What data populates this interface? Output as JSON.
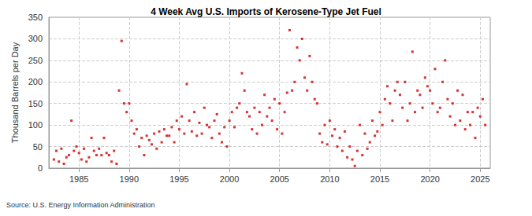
{
  "chart_data": {
    "type": "scatter",
    "title": "4 Week Avg U.S. Imports of Kerosene-Type Jet Fuel",
    "y_label": "Thousand Barrels per Day",
    "source": "Source: U.S. Energy Information Administration",
    "color": "#cc0000",
    "marker": "square",
    "grid": true,
    "xlim": [
      1982,
      2026
    ],
    "xticks": [
      1985,
      1990,
      1995,
      2000,
      2005,
      2010,
      2015,
      2020,
      2025
    ],
    "ylim": [
      0,
      350
    ],
    "yticks": [
      0,
      50,
      100,
      150,
      200,
      250,
      300,
      350
    ],
    "x": [
      1982.5,
      1982.75,
      1983,
      1983.25,
      1983.5,
      1983.75,
      1984,
      1984.25,
      1984.5,
      1984.75,
      1985,
      1985.25,
      1985.5,
      1985.75,
      1986,
      1986.25,
      1986.5,
      1986.75,
      1987,
      1987.25,
      1987.5,
      1987.75,
      1988,
      1988.25,
      1988.5,
      1988.75,
      1989,
      1989.25,
      1989.5,
      1989.75,
      1990,
      1990.25,
      1990.5,
      1990.75,
      1991,
      1991.25,
      1991.5,
      1991.75,
      1992,
      1992.25,
      1992.5,
      1992.75,
      1993,
      1993.25,
      1993.5,
      1993.75,
      1994,
      1994.25,
      1994.5,
      1994.75,
      1995,
      1995.25,
      1995.5,
      1995.75,
      1996,
      1996.25,
      1996.5,
      1996.75,
      1997,
      1997.25,
      1997.5,
      1997.75,
      1998,
      1998.25,
      1998.5,
      1998.75,
      1999,
      1999.25,
      1999.5,
      1999.75,
      2000,
      2000.25,
      2000.5,
      2000.75,
      2001,
      2001.25,
      2001.5,
      2001.75,
      2002,
      2002.25,
      2002.5,
      2002.75,
      2003,
      2003.25,
      2003.5,
      2003.75,
      2004,
      2004.25,
      2004.5,
      2004.75,
      2005,
      2005.25,
      2005.5,
      2005.75,
      2006,
      2006.25,
      2006.5,
      2006.75,
      2007,
      2007.25,
      2007.5,
      2007.75,
      2008,
      2008.25,
      2008.5,
      2008.75,
      2009,
      2009.25,
      2009.5,
      2009.75,
      2010,
      2010.25,
      2010.5,
      2010.75,
      2011,
      2011.25,
      2011.5,
      2011.75,
      2012,
      2012.25,
      2012.5,
      2012.75,
      2013,
      2013.25,
      2013.5,
      2013.75,
      2014,
      2014.25,
      2014.5,
      2014.75,
      2015,
      2015.25,
      2015.5,
      2015.75,
      2016,
      2016.25,
      2016.5,
      2016.75,
      2017,
      2017.25,
      2017.5,
      2017.75,
      2018,
      2018.25,
      2018.5,
      2018.75,
      2019,
      2019.25,
      2019.5,
      2019.75,
      2020,
      2020.25,
      2020.5,
      2020.75,
      2021,
      2021.25,
      2021.5,
      2021.75,
      2022,
      2022.25,
      2022.5,
      2022.75,
      2023,
      2023.25,
      2023.5,
      2023.75,
      2024,
      2024.25,
      2024.5,
      2024.75,
      2025,
      2025.25,
      2025.5
    ],
    "values": [
      20,
      40,
      15,
      45,
      10,
      25,
      30,
      110,
      40,
      50,
      35,
      20,
      45,
      15,
      25,
      70,
      40,
      30,
      45,
      30,
      70,
      35,
      30,
      15,
      40,
      10,
      180,
      295,
      150,
      130,
      150,
      110,
      80,
      90,
      50,
      70,
      30,
      75,
      65,
      55,
      80,
      45,
      85,
      60,
      90,
      75,
      75,
      95,
      60,
      110,
      90,
      120,
      80,
      195,
      110,
      85,
      130,
      75,
      105,
      80,
      140,
      100,
      95,
      70,
      110,
      125,
      80,
      60,
      95,
      50,
      110,
      130,
      95,
      140,
      150,
      220,
      180,
      130,
      120,
      90,
      140,
      80,
      130,
      100,
      170,
      120,
      140,
      110,
      160,
      90,
      150,
      80,
      130,
      175,
      320,
      180,
      200,
      280,
      250,
      300,
      210,
      180,
      260,
      200,
      160,
      150,
      80,
      60,
      100,
      55,
      110,
      75,
      90,
      50,
      70,
      40,
      85,
      25,
      50,
      20,
      5,
      40,
      100,
      30,
      80,
      45,
      60,
      110,
      75,
      85,
      130,
      100,
      160,
      190,
      150,
      110,
      180,
      200,
      170,
      140,
      200,
      110,
      150,
      270,
      130,
      180,
      170,
      140,
      210,
      190,
      180,
      150,
      230,
      130,
      140,
      200,
      250,
      160,
      120,
      150,
      100,
      180,
      110,
      170,
      90,
      130,
      100,
      130,
      70,
      140,
      120,
      160,
      100
    ]
  }
}
